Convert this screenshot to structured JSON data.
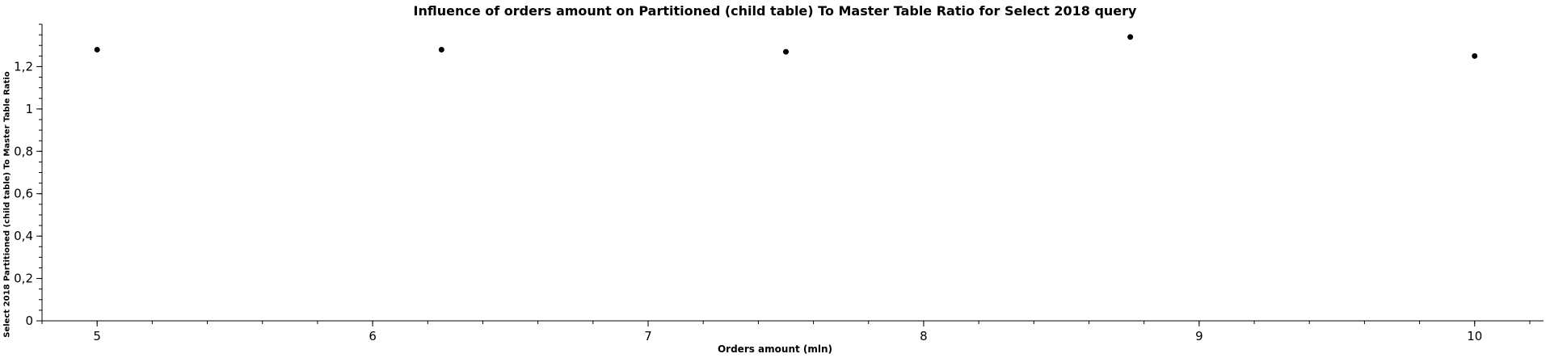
{
  "chart_data": {
    "type": "scatter",
    "title": "Influence of orders amount on Partitioned (child table) To Master Table Ratio for Select 2018 query",
    "xlabel": "Orders amount (mln)",
    "ylabel": "Select 2018 Partitioned (child table) To Master Table Ratio",
    "xlim": [
      4.8,
      10.25
    ],
    "ylim": [
      0,
      1.4
    ],
    "x_ticks": [
      5,
      6,
      7,
      8,
      9,
      10
    ],
    "x_tick_labels": [
      "5",
      "6",
      "7",
      "8",
      "9",
      "10"
    ],
    "x_minor_step": 0.2,
    "y_ticks": [
      0,
      0.2,
      0.4,
      0.6,
      0.8,
      1,
      1.2
    ],
    "y_tick_labels": [
      "0",
      "0,2",
      "0,4",
      "0,6",
      "0,8",
      "1",
      "1,2"
    ],
    "y_minor_step": 0.05,
    "grid": false,
    "legend": "none",
    "series": [
      {
        "x": [
          5,
          6.25,
          7.5,
          8.75,
          10
        ],
        "y": [
          1.28,
          1.28,
          1.27,
          1.34,
          1.25
        ]
      }
    ],
    "colors": {
      "point": "#000000",
      "axis": "#000000",
      "background": "#ffffff"
    }
  }
}
